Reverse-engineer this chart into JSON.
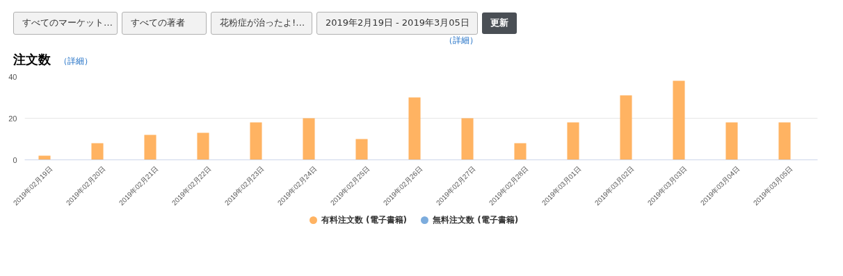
{
  "chart_data": {
    "type": "bar",
    "title": "注文数",
    "annotations": [
      "すべてのマーケット…",
      "すべての著者",
      "花粉症が治ったよ!…",
      "2019年2月19日 - 2019年3月05日",
      "更新",
      "（詳細）",
      "（詳細）"
    ],
    "categories": [
      "2019年02月19日",
      "2019年02月20日",
      "2019年02月21日",
      "2019年02月22日",
      "2019年02月23日",
      "2019年02月24日",
      "2019年02月25日",
      "2019年02月26日",
      "2019年02月27日",
      "2019年02月28日",
      "2019年03月01日",
      "2019年03月02日",
      "2019年03月03日",
      "2019年03月04日",
      "2019年03月05日"
    ],
    "series": [
      {
        "name": "有料注文数 (電子書籍)",
        "color": "#ffb362",
        "values": [
          2,
          8,
          12,
          13,
          18,
          20,
          10,
          30,
          20,
          8,
          18,
          31,
          38,
          18,
          18
        ]
      },
      {
        "name": "無料注文数 (電子書籍)",
        "color": "#7cacdd",
        "values": [
          0,
          0,
          0,
          0,
          0,
          0,
          0,
          0,
          0,
          0,
          0,
          0,
          0,
          0,
          0
        ]
      }
    ],
    "ylim": [
      0,
      40
    ],
    "yticks": [
      0,
      20,
      40
    ],
    "grid": "y",
    "legend": "bottom"
  }
}
